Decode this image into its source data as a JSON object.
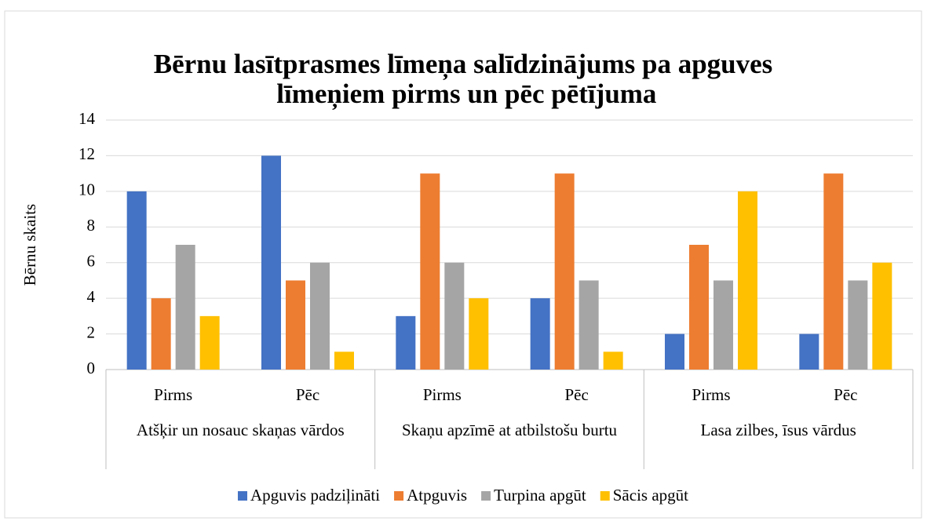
{
  "chart_data": {
    "type": "bar",
    "title": "Bērnu lasītprasmes līmeņa salīdzinājums pa apguves līmeņiem pirms un pēc pētījuma",
    "y_label": "Bērnu skaits",
    "categories": [
      "Pirms",
      "Pēc",
      "Pirms",
      "Pēc",
      "Pirms",
      "Pēc"
    ],
    "category_groups": [
      "Atšķir un nosauc skaņas vārdos",
      "Skaņu apzīmē at atbilstošu burtu",
      "Lasa zilbes, īsus vārdus"
    ],
    "series": [
      {
        "name": "Apguvis padziļināti",
        "color": "#4472c4",
        "values": [
          10,
          12,
          3,
          4,
          2,
          2
        ]
      },
      {
        "name": "Atpguvis",
        "color": "#ed7d31",
        "values": [
          4,
          5,
          11,
          11,
          7,
          11
        ]
      },
      {
        "name": "Turpina apgūt",
        "color": "#a5a5a5",
        "values": [
          7,
          6,
          6,
          5,
          5,
          5
        ]
      },
      {
        "name": "Sācis apgūt",
        "color": "#ffc000",
        "values": [
          3,
          1,
          4,
          1,
          10,
          6
        ]
      }
    ],
    "ylim": [
      0,
      14
    ],
    "yticks": [
      0,
      2,
      4,
      6,
      8,
      10,
      12,
      14
    ],
    "grid": true,
    "legend": "bottom"
  }
}
